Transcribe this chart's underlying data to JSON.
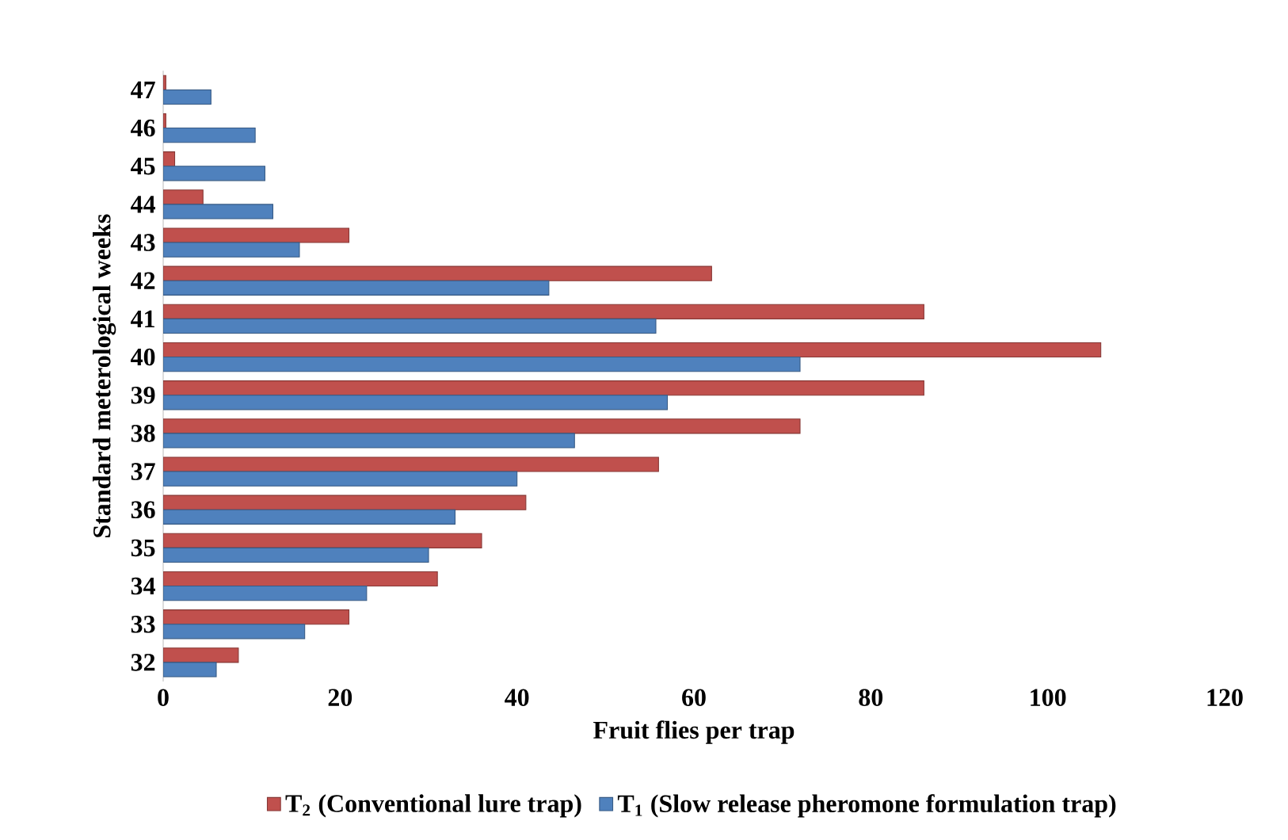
{
  "chart_data": {
    "type": "bar",
    "orientation": "horizontal",
    "ylabel": "Standard meterological weeks",
    "xlabel": "Fruit flies per trap",
    "categories": [
      "47",
      "46",
      "45",
      "44",
      "43",
      "42",
      "41",
      "40",
      "39",
      "38",
      "37",
      "36",
      "35",
      "34",
      "33",
      "32"
    ],
    "series": [
      {
        "name": "T$_{2}$  (Conventional lure trap)",
        "color": "#c0504d",
        "values": [
          0.3,
          0.3,
          1.3,
          4.5,
          21,
          62,
          86,
          106,
          86,
          72,
          56,
          41,
          36,
          31,
          21,
          8.5
        ]
      },
      {
        "name": "T$_{1}$  (Slow release pheromone formulation trap)",
        "color": "#4f81bd",
        "values": [
          5.4,
          10.4,
          11.5,
          12.4,
          15.4,
          43.6,
          55.7,
          72,
          57,
          46.5,
          40,
          33,
          30,
          23,
          16,
          6
        ]
      }
    ],
    "xlim": [
      0,
      120
    ],
    "xticks": [
      0,
      20,
      40,
      60,
      80,
      100,
      120
    ],
    "legend": "bottom"
  }
}
